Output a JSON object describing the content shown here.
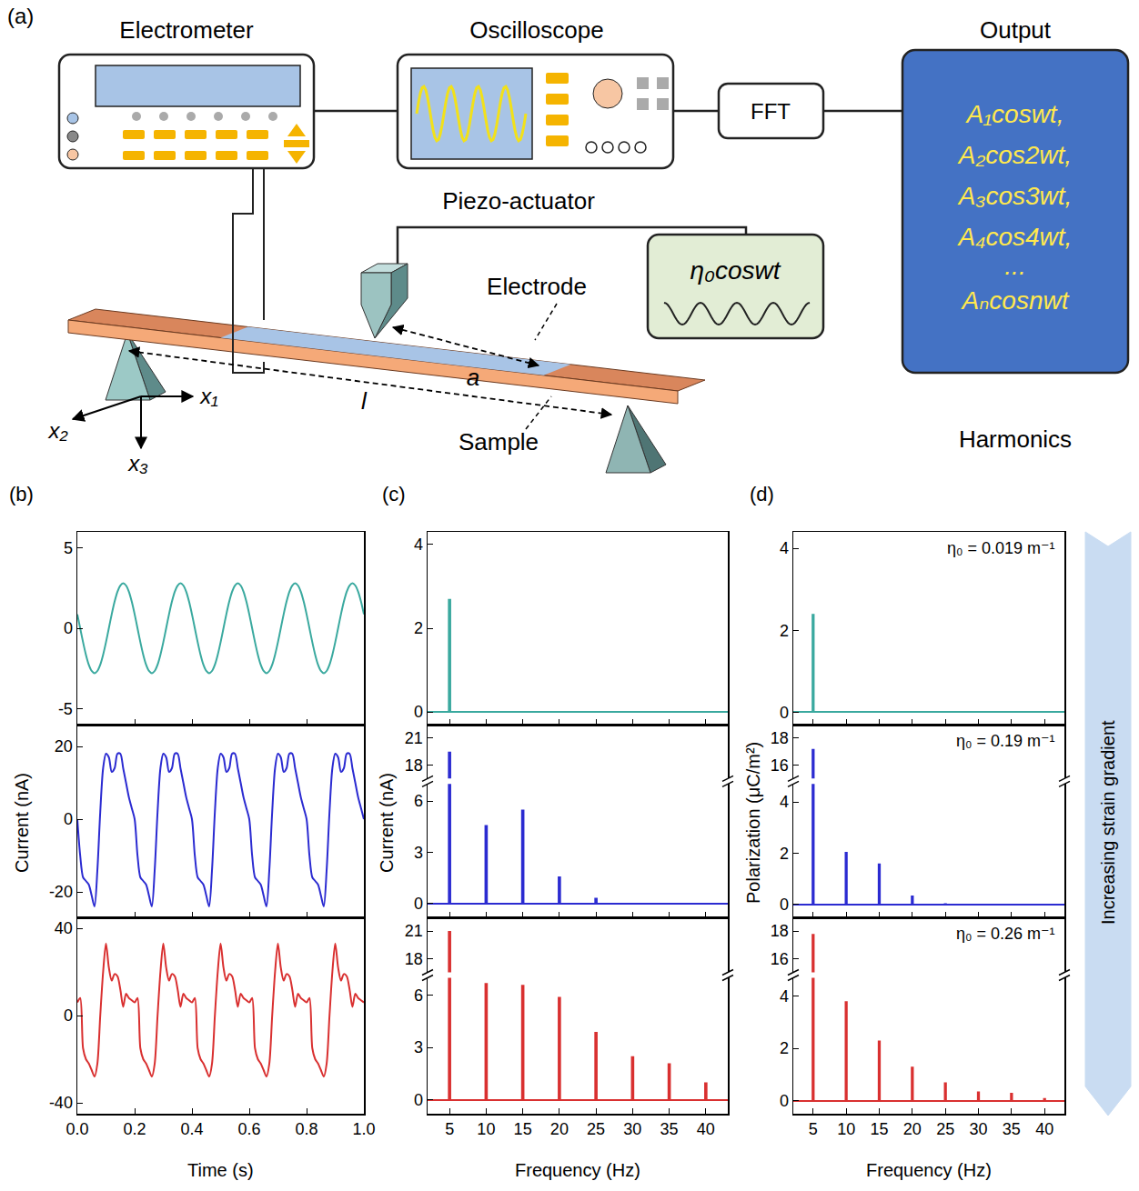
{
  "diagram": {
    "panel": "(a)",
    "electrometer": "Electrometer",
    "oscilloscope": "Oscilloscope",
    "fft": "FFT",
    "output": "Output",
    "output_lines": [
      "A₁coswt,",
      "A₂cos2wt,",
      "A₃cos3wt,",
      "A₄cos4wt,",
      "...",
      "Aₙcosnwt"
    ],
    "harmonics": "Harmonics",
    "actuator": "Piezo-actuator",
    "signal": "η₀coswt",
    "electrode": "Electrode",
    "sample": "Sample",
    "electrode_length": "a",
    "span": "l",
    "axes": [
      "x₁",
      "x₂",
      "x₃"
    ]
  },
  "side_label": "Increasing strain gradient",
  "chart_data": [
    {
      "panel": "(b)",
      "type": "line",
      "x_label": "Time (s)",
      "y_label": "Current (nA)",
      "x": [
        0,
        0.01,
        0.02,
        0.03,
        0.04,
        0.05,
        0.06,
        0.07,
        0.08,
        0.09,
        0.1,
        0.11,
        0.12,
        0.13,
        0.14,
        0.15,
        0.16,
        0.17,
        0.18,
        0.19,
        0.2,
        0.21,
        0.22,
        0.23,
        0.24,
        0.25,
        0.26,
        0.27,
        0.28,
        0.29,
        0.3,
        0.31,
        0.32,
        0.33,
        0.34,
        0.35,
        0.36,
        0.37,
        0.38,
        0.39,
        0.4,
        0.41,
        0.42,
        0.43,
        0.44,
        0.45,
        0.46,
        0.47,
        0.48,
        0.49,
        0.5,
        0.51,
        0.52,
        0.53,
        0.54,
        0.55,
        0.56,
        0.57,
        0.58,
        0.59,
        0.6,
        0.61,
        0.62,
        0.63,
        0.64,
        0.65,
        0.66,
        0.67,
        0.68,
        0.69,
        0.7,
        0.71,
        0.72,
        0.73,
        0.74,
        0.75,
        0.76,
        0.77,
        0.78,
        0.79,
        0.8,
        0.81,
        0.82,
        0.83,
        0.84,
        0.85,
        0.86,
        0.87,
        0.88,
        0.89,
        0.9,
        0.91,
        0.92,
        0.93,
        0.94,
        0.95,
        0.96,
        0.97,
        0.98,
        0.99,
        1
      ],
      "xlim": [
        0,
        1
      ],
      "xticks": [
        {
          "value": 0,
          "label": "0.0"
        },
        0.2,
        0.4,
        0.6,
        0.8,
        {
          "value": 1,
          "label": "1.0"
        }
      ],
      "subplots": [
        {
          "color": "#3aa99f",
          "ylim": [
            -6,
            6
          ],
          "yticks": [
            -5,
            0,
            5
          ],
          "values": [
            0.87,
            0,
            -0.87,
            -1.65,
            -2.27,
            -2.66,
            -2.8,
            -2.66,
            -2.27,
            -1.65,
            -0.87,
            0,
            0.87,
            1.65,
            2.27,
            2.66,
            2.8,
            2.66,
            2.27,
            1.65,
            0.87,
            0,
            -0.87,
            -1.65,
            -2.27,
            -2.66,
            -2.8,
            -2.66,
            -2.27,
            -1.65,
            -0.87,
            0,
            0.87,
            1.65,
            2.27,
            2.66,
            2.8,
            2.66,
            2.27,
            1.65,
            0.87,
            0,
            -0.87,
            -1.65,
            -2.27,
            -2.66,
            -2.8,
            -2.66,
            -2.27,
            -1.65,
            -0.87,
            0,
            0.87,
            1.65,
            2.27,
            2.66,
            2.8,
            2.66,
            2.27,
            1.65,
            0.87,
            0,
            -0.87,
            -1.65,
            -2.27,
            -2.66,
            -2.8,
            -2.66,
            -2.27,
            -1.65,
            -0.87,
            0,
            0.87,
            1.65,
            2.27,
            2.66,
            2.8,
            2.66,
            2.27,
            1.65,
            0.87,
            0,
            -0.87,
            -1.65,
            -2.27,
            -2.66,
            -2.8,
            -2.66,
            -2.27,
            -1.65,
            -0.87,
            0,
            0.87,
            1.65,
            2.27,
            2.66,
            2.8,
            2.66,
            2.27,
            1.65,
            0.87
          ]
        },
        {
          "color": "#2b2bd1",
          "ylim": [
            -27,
            26
          ],
          "yticks": [
            -20,
            0,
            20
          ],
          "values": [
            0,
            -10,
            -16,
            -17,
            -18,
            -21,
            -24,
            -14,
            2,
            14,
            18,
            17,
            13,
            14,
            18,
            18,
            14,
            10,
            6,
            3,
            0,
            -10,
            -16,
            -17,
            -18,
            -21,
            -24,
            -14,
            2,
            14,
            18,
            17,
            13,
            14,
            18,
            18,
            14,
            10,
            6,
            3,
            0,
            -10,
            -16,
            -17,
            -18,
            -21,
            -24,
            -14,
            2,
            14,
            18,
            17,
            13,
            14,
            18,
            18,
            14,
            10,
            6,
            3,
            0,
            -10,
            -16,
            -17,
            -18,
            -21,
            -24,
            -14,
            2,
            14,
            18,
            17,
            13,
            14,
            18,
            18,
            14,
            10,
            6,
            3,
            0,
            -10,
            -16,
            -17,
            -18,
            -21,
            -24,
            -14,
            2,
            14,
            18,
            17,
            13,
            14,
            18,
            18,
            14,
            10,
            6,
            3,
            0
          ]
        },
        {
          "color": "#d93030",
          "ylim": [
            -45,
            45
          ],
          "yticks": [
            -40,
            0,
            40
          ],
          "values": [
            6,
            8,
            -15,
            -20,
            -22,
            -25,
            -28,
            -22,
            0,
            20,
            33,
            22,
            16,
            19,
            18,
            12,
            4,
            10,
            8,
            7,
            6,
            8,
            -15,
            -20,
            -22,
            -25,
            -28,
            -22,
            0,
            20,
            33,
            22,
            16,
            19,
            18,
            12,
            4,
            10,
            8,
            7,
            6,
            8,
            -15,
            -20,
            -22,
            -25,
            -28,
            -22,
            0,
            20,
            33,
            22,
            16,
            19,
            18,
            12,
            4,
            10,
            8,
            7,
            6,
            8,
            -15,
            -20,
            -22,
            -25,
            -28,
            -22,
            0,
            20,
            33,
            22,
            16,
            19,
            18,
            12,
            4,
            10,
            8,
            7,
            6,
            8,
            -15,
            -20,
            -22,
            -25,
            -28,
            -22,
            0,
            20,
            33,
            22,
            16,
            19,
            18,
            12,
            4,
            10,
            8,
            7,
            6
          ]
        }
      ]
    },
    {
      "panel": "(c)",
      "type": "bar",
      "x_label": "Frequency (Hz)",
      "y_label": "Current (nA)",
      "x": [
        5,
        10,
        15,
        20,
        25,
        30,
        35,
        40
      ],
      "xlim": [
        2,
        43
      ],
      "xticks": [
        5,
        10,
        15,
        20,
        25,
        30,
        35,
        40
      ],
      "subplots": [
        {
          "color": "#3aa99f",
          "ylim": [
            -0.3,
            4.3
          ],
          "yticks": [
            0,
            2,
            4
          ],
          "values": [
            2.7,
            0,
            0,
            0,
            0,
            0,
            0,
            0
          ]
        },
        {
          "color": "#2b2bd1",
          "ylim": [
            [
              -0.8,
              7
            ],
            [
              16.5,
              22.5
            ]
          ],
          "yticks": [
            [
              0,
              3,
              6
            ],
            [
              18,
              21
            ]
          ],
          "values": [
            19.5,
            4.6,
            5.5,
            1.6,
            0.35,
            0,
            0,
            0
          ]
        },
        {
          "color": "#d93030",
          "ylim": [
            [
              -0.8,
              7
            ],
            [
              16.5,
              22.5
            ]
          ],
          "yticks": [
            [
              0,
              3,
              6
            ],
            [
              18,
              21
            ]
          ],
          "values": [
            21,
            6.7,
            6.6,
            5.9,
            3.9,
            2.5,
            2.1,
            1.0
          ]
        }
      ]
    },
    {
      "panel": "(d)",
      "type": "bar",
      "x_label": "Frequency (Hz)",
      "y_label": "Polarization (μC/m²)",
      "x": [
        5,
        10,
        15,
        20,
        25,
        30,
        35,
        40
      ],
      "xlim": [
        2,
        43
      ],
      "xticks": [
        5,
        10,
        15,
        20,
        25,
        30,
        35,
        40
      ],
      "subplots": [
        {
          "color": "#3aa99f",
          "ylim": [
            -0.3,
            4.4
          ],
          "yticks": [
            0,
            2,
            4
          ],
          "values": [
            2.4,
            0,
            0,
            0,
            0,
            0,
            0,
            0
          ],
          "annotation": "η₀ = 0.019 m⁻¹"
        },
        {
          "color": "#2b2bd1",
          "ylim": [
            [
              -0.5,
              4.7
            ],
            [
              15,
              19
            ]
          ],
          "yticks": [
            [
              0,
              2,
              4
            ],
            [
              16,
              18
            ]
          ],
          "values": [
            17.2,
            2.05,
            1.6,
            0.35,
            0.05,
            0,
            0,
            0
          ],
          "annotation": "η₀ = 0.19 m⁻¹"
        },
        {
          "color": "#d93030",
          "ylim": [
            [
              -0.5,
              4.7
            ],
            [
              15,
              19
            ]
          ],
          "yticks": [
            [
              0,
              2,
              4
            ],
            [
              16,
              18
            ]
          ],
          "values": [
            17.8,
            3.8,
            2.3,
            1.3,
            0.7,
            0.35,
            0.3,
            0.1
          ],
          "annotation": "η₀ = 0.26 m⁻¹"
        }
      ]
    }
  ]
}
